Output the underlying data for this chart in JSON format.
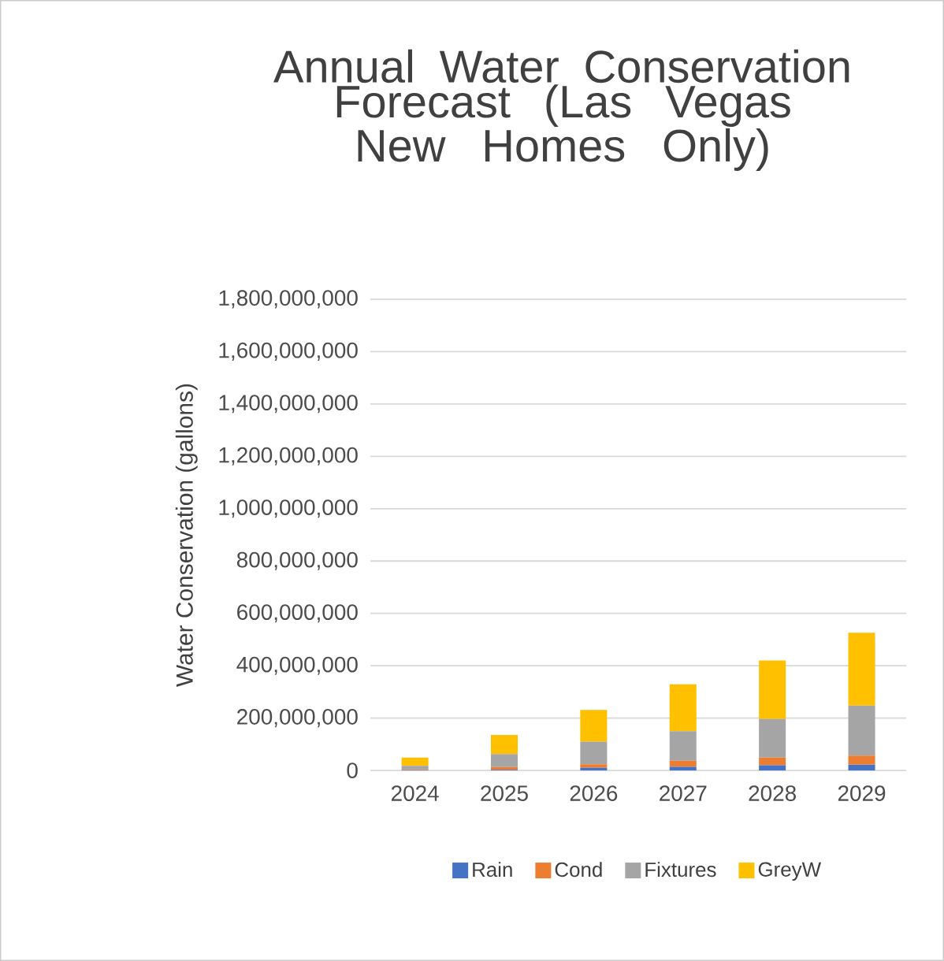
{
  "chart_data": {
    "type": "bar",
    "stacked": true,
    "title": "Annual Water Conservation Forecast (Las Vegas New Homes Only)",
    "ylabel": "Water Conservation (gallons)",
    "categories": [
      "2024",
      "2025",
      "2026",
      "2027",
      "2028",
      "2029"
    ],
    "series": [
      {
        "name": "Rain",
        "color": "#4472c4",
        "values": [
          2000000,
          3000000,
          10000000,
          14000000,
          20000000,
          22000000
        ]
      },
      {
        "name": "Cond",
        "color": "#ed7d31",
        "values": [
          3000000,
          10000000,
          14000000,
          23000000,
          29000000,
          35000000
        ]
      },
      {
        "name": "Fixtures",
        "color": "#a5a5a5",
        "values": [
          13000000,
          50000000,
          86000000,
          113000000,
          148000000,
          191000000
        ]
      },
      {
        "name": "GreyW",
        "color": "#ffc000",
        "values": [
          31000000,
          73000000,
          121000000,
          179000000,
          223000000,
          278000000
        ]
      }
    ],
    "ylim": [
      0,
      1800000000
    ],
    "yticks": [
      0,
      {
        "value": 200000000,
        "label": "200,000,000"
      },
      {
        "value": 400000000,
        "label": "400,000,000"
      },
      {
        "value": 600000000,
        "label": "600,000,000"
      },
      {
        "value": 800000000,
        "label": "800,000,000"
      },
      {
        "value": 1000000000,
        "label": "1,000,000,000"
      },
      {
        "value": 1200000000,
        "label": "1,200,000,000"
      },
      {
        "value": 1400000000,
        "label": "1,400,000,000"
      },
      {
        "value": 1600000000,
        "label": "1,600,000,000"
      },
      {
        "value": 1800000000,
        "label": "1,800,000,000"
      }
    ],
    "grid": "y",
    "legend": "bottom"
  }
}
